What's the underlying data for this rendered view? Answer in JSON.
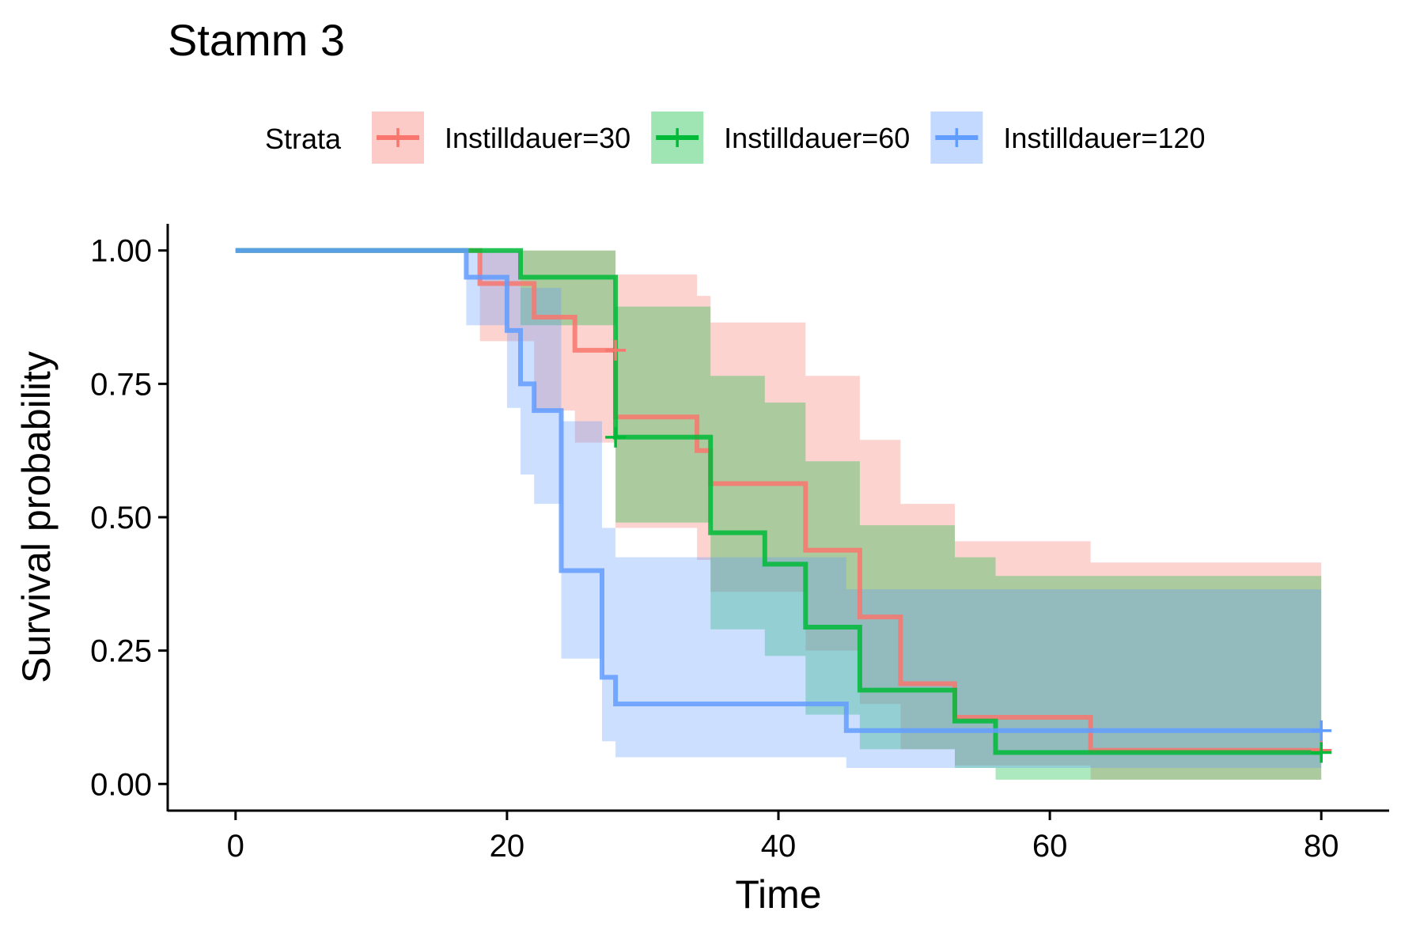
{
  "chart_data": {
    "type": "line",
    "subtype": "kaplan-meier step survival curves with confidence bands",
    "title": "Stamm 3",
    "xlabel": "Time",
    "ylabel": "Survival probability",
    "xlim": [
      -5,
      85
    ],
    "ylim": [
      -0.05,
      1.05
    ],
    "xticks": [
      "0",
      "20",
      "40",
      "60",
      "80"
    ],
    "xtick_values": [
      0,
      20,
      40,
      60,
      80
    ],
    "yticks": [
      "0.00",
      "0.25",
      "0.50",
      "0.75",
      "1.00"
    ],
    "ytick_values": [
      0,
      0.25,
      0.5,
      0.75,
      1.0
    ],
    "grid": false,
    "legend": {
      "title": "Strata",
      "position": "top"
    },
    "series": [
      {
        "name": "Instilldauer=30",
        "color": "#f8766d",
        "steps": [
          [
            0,
            1.0
          ],
          [
            18,
            0.938
          ],
          [
            22,
            0.875
          ],
          [
            25,
            0.813
          ],
          [
            28,
            0.688
          ],
          [
            34,
            0.625
          ],
          [
            35,
            0.563
          ],
          [
            42,
            0.438
          ],
          [
            46,
            0.313
          ],
          [
            49,
            0.188
          ],
          [
            53,
            0.125
          ],
          [
            63,
            0.063
          ],
          [
            80,
            0.063
          ]
        ],
        "band": [
          [
            0,
            1.0,
            1.0
          ],
          [
            18,
            0.83,
            1.0
          ],
          [
            22,
            0.7,
            1.0
          ],
          [
            25,
            0.64,
            1.0
          ],
          [
            28,
            0.48,
            0.955
          ],
          [
            34,
            0.42,
            0.915
          ],
          [
            35,
            0.36,
            0.865
          ],
          [
            42,
            0.25,
            0.765
          ],
          [
            46,
            0.15,
            0.645
          ],
          [
            49,
            0.065,
            0.525
          ],
          [
            53,
            0.035,
            0.455
          ],
          [
            56,
            0.035,
            0.455
          ],
          [
            63,
            0.008,
            0.415
          ],
          [
            80,
            0.008,
            0.415
          ]
        ],
        "censored": [
          [
            28,
            0.813
          ],
          [
            80,
            0.063
          ]
        ]
      },
      {
        "name": "Instilldauer=60",
        "color": "#00ba38",
        "steps": [
          [
            0,
            1.0
          ],
          [
            21,
            0.95
          ],
          [
            28,
            0.65
          ],
          [
            35,
            0.471
          ],
          [
            39,
            0.412
          ],
          [
            42,
            0.294
          ],
          [
            46,
            0.176
          ],
          [
            53,
            0.118
          ],
          [
            56,
            0.059
          ],
          [
            80,
            0.059
          ]
        ],
        "band": [
          [
            0,
            1.0,
            1.0
          ],
          [
            21,
            0.86,
            1.0
          ],
          [
            28,
            0.49,
            0.895
          ],
          [
            35,
            0.29,
            0.765
          ],
          [
            39,
            0.24,
            0.715
          ],
          [
            42,
            0.13,
            0.605
          ],
          [
            46,
            0.065,
            0.485
          ],
          [
            53,
            0.03,
            0.425
          ],
          [
            56,
            0.008,
            0.39
          ],
          [
            80,
            0.008,
            0.39
          ]
        ],
        "censored": [
          [
            28,
            0.65
          ],
          [
            80,
            0.059
          ]
        ]
      },
      {
        "name": "Instilldauer=120",
        "color": "#619cff",
        "steps": [
          [
            0,
            1.0
          ],
          [
            17,
            0.95
          ],
          [
            20,
            0.85
          ],
          [
            21,
            0.75
          ],
          [
            22,
            0.7
          ],
          [
            24,
            0.4
          ],
          [
            27,
            0.2
          ],
          [
            28,
            0.15
          ],
          [
            45,
            0.1
          ],
          [
            80,
            0.1
          ]
        ],
        "band": [
          [
            0,
            1.0,
            1.0
          ],
          [
            17,
            0.86,
            1.0
          ],
          [
            20,
            0.705,
            1.0
          ],
          [
            21,
            0.58,
            0.93
          ],
          [
            22,
            0.525,
            0.93
          ],
          [
            24,
            0.235,
            0.68
          ],
          [
            27,
            0.08,
            0.48
          ],
          [
            28,
            0.05,
            0.425
          ],
          [
            45,
            0.03,
            0.365
          ],
          [
            80,
            0.03,
            0.365
          ]
        ],
        "censored": [
          [
            80,
            0.1
          ]
        ]
      }
    ]
  }
}
